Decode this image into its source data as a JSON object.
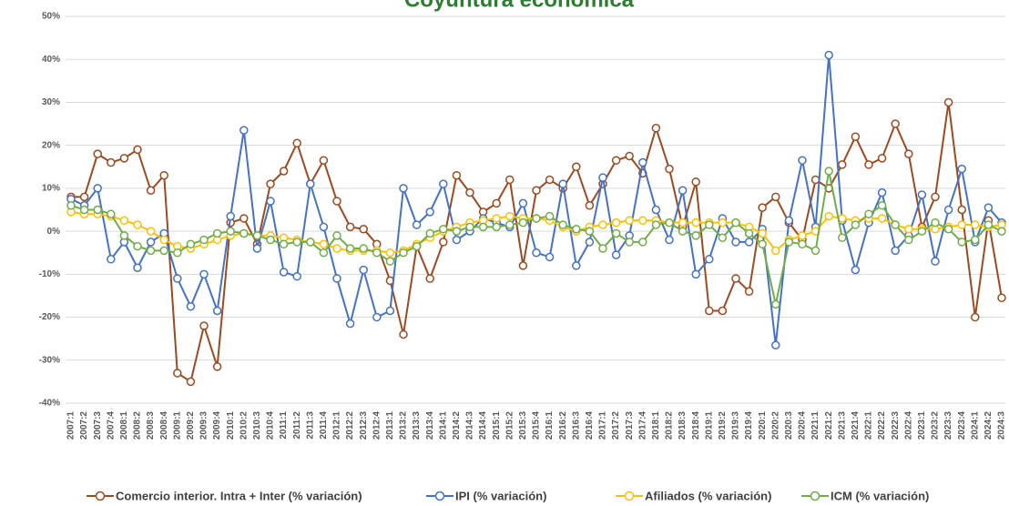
{
  "chart_data": {
    "type": "line",
    "title": "Coyuntura económica",
    "categories": [
      "2007:1",
      "2007:2",
      "2007:3",
      "2007:4",
      "2008:1",
      "2008:2",
      "2008:3",
      "2008:4",
      "2009:1",
      "2009:2",
      "2009:3",
      "2009:4",
      "2010:1",
      "2010:2",
      "2010:3",
      "2010:4",
      "2011:1",
      "2011:2",
      "2011:3",
      "2011:4",
      "2012:1",
      "2012:2",
      "2012:3",
      "2012:4",
      "2013:1",
      "2013:2",
      "2013:3",
      "2013:4",
      "2014:1",
      "2014:2",
      "2014:3",
      "2014:4",
      "2015:1",
      "2015:2",
      "2015:3",
      "2015:4",
      "2016:1",
      "2016:2",
      "2016:3",
      "2016:4",
      "2017:1",
      "2017:2",
      "2017:3",
      "2017:4",
      "2018:1",
      "2018:2",
      "2018:3",
      "2018:4",
      "2019:1",
      "2019:2",
      "2019:3",
      "2019:4",
      "2020:1",
      "2020:2",
      "2020:3",
      "2020:4",
      "2021:1",
      "2021:2",
      "2021:3",
      "2021:4",
      "2022:1",
      "2022:2",
      "2022:3",
      "2022:4",
      "2023:1",
      "2023:2",
      "2023:3",
      "2023:4",
      "2024:1",
      "2024:2",
      "2024:3"
    ],
    "series": [
      {
        "name": "Comercio interior. Intra + Inter (% variación)",
        "color": "#9c4a1f",
        "values": [
          8,
          8,
          18,
          16,
          17,
          19,
          9.5,
          13,
          -33,
          -35,
          -22,
          -31.5,
          2,
          3,
          -3,
          11,
          14,
          20.5,
          11,
          16.5,
          7,
          1,
          0.5,
          -3,
          -11.5,
          -24,
          -3.5,
          -11,
          -2.5,
          13,
          9,
          4.5,
          6.5,
          12,
          -8,
          9.5,
          12,
          10,
          15,
          6,
          11,
          16.5,
          17.5,
          13.5,
          24,
          14.5,
          1,
          11.5,
          -18.5,
          -18.5,
          -11,
          -14,
          5.5,
          8,
          2,
          -2,
          12,
          10,
          15.5,
          22,
          15.5,
          17,
          25,
          18,
          1,
          8,
          30,
          5,
          -20,
          2.5,
          -15.5
        ]
      },
      {
        "name": "IPI (% variación)",
        "color": "#4472c4",
        "values": [
          7.5,
          6,
          10,
          -6.5,
          -2.5,
          -8.5,
          -2.5,
          -0.5,
          -11,
          -17.5,
          -10,
          -18.5,
          3.5,
          23.5,
          -4,
          7,
          -9.5,
          -10.5,
          11,
          1,
          -11,
          -21.5,
          -9,
          -20,
          -18.5,
          10,
          1.5,
          4.5,
          11,
          -2,
          0,
          3,
          2,
          1,
          6.5,
          -5,
          -6,
          11,
          -8,
          -2.5,
          12.5,
          -5.5,
          -1,
          16,
          5,
          -2,
          9.5,
          -10,
          -6.5,
          3,
          -2.5,
          -2.5,
          0.5,
          -26.5,
          2.5,
          16.5,
          1,
          41,
          2.5,
          -9,
          2,
          9,
          -4.5,
          -1,
          8.5,
          -7,
          5,
          14.5,
          -2.5,
          5.5,
          2
        ]
      },
      {
        "name": "Afiliados (% variación)",
        "color": "#ffc000",
        "values": [
          4.5,
          4,
          4,
          3.5,
          2.5,
          1.5,
          0,
          -2,
          -3.5,
          -4,
          -3,
          -2,
          -1,
          -0.5,
          -1,
          -1,
          -1.5,
          -2,
          -2.5,
          -3,
          -4,
          -4.5,
          -4.5,
          -4.5,
          -5,
          -4.5,
          -3,
          -1.5,
          0,
          1,
          2,
          2.5,
          3,
          3.5,
          3,
          3,
          2.5,
          1,
          0,
          1,
          1.5,
          2,
          2.5,
          2.5,
          2.5,
          2,
          2,
          2,
          2,
          2,
          2,
          1,
          -0.5,
          -4.5,
          -2,
          -1,
          0,
          3.5,
          3,
          2.5,
          3,
          3,
          1.5,
          0.5,
          0.5,
          0.5,
          1,
          1.5,
          1.5,
          1,
          1.5
        ]
      },
      {
        "name": "ICM (% variación)",
        "color": "#70ad47",
        "values": [
          6,
          5,
          5,
          4,
          -1,
          -3.5,
          -4.5,
          -4.5,
          -5,
          -3,
          -2,
          -0.5,
          0,
          -0.5,
          -1,
          -2,
          -3,
          -2.5,
          -2.5,
          -5,
          -1,
          -4,
          -4,
          -5,
          -7,
          -5,
          -3.5,
          -0.5,
          0.5,
          0,
          1,
          1,
          1,
          1.5,
          2,
          3,
          3.5,
          1.5,
          0.5,
          0,
          -4,
          -0.5,
          -2.5,
          -2.5,
          1.5,
          2,
          0,
          -1,
          1.5,
          -1.5,
          2,
          -0.5,
          -3,
          -17,
          -2.5,
          -3,
          -4.5,
          14,
          -1.5,
          1.5,
          4,
          6,
          1.5,
          -2,
          0,
          2,
          0.5,
          -2.5,
          -2,
          1.5,
          0
        ]
      }
    ],
    "ylim": [
      -40,
      50
    ],
    "yticks": [
      {
        "value": -40,
        "label": "-40%"
      },
      {
        "value": -30,
        "label": "-30%"
      },
      {
        "value": -20,
        "label": "-20%"
      },
      {
        "value": -10,
        "label": "-10%"
      },
      {
        "value": 0,
        "label": "0%"
      },
      {
        "value": 10,
        "label": "10%"
      },
      {
        "value": 20,
        "label": "20%"
      },
      {
        "value": 30,
        "label": "30%"
      },
      {
        "value": 40,
        "label": "40%"
      },
      {
        "value": 50,
        "label": "50%"
      }
    ],
    "grid": true
  }
}
